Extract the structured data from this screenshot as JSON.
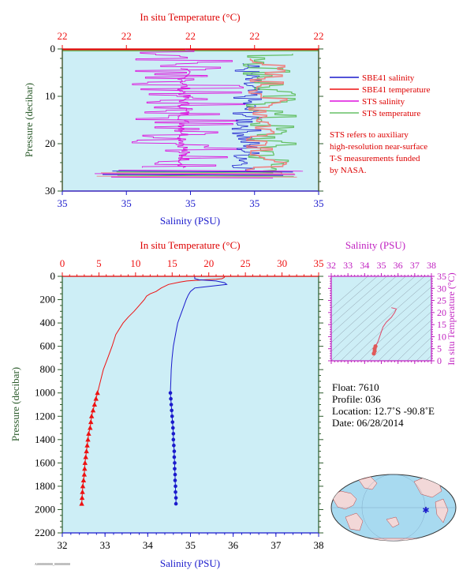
{
  "colors": {
    "plot_bg": "#cdeef6",
    "salinity": "#1a1acc",
    "temperature": "#ee1111",
    "sts_salinity": "#dd11dd",
    "sts_temperature": "#66c066",
    "ts_axis": "#c020c0",
    "pressure_axis": "#2a5a2a"
  },
  "chart_data": [
    {
      "id": "near-surface",
      "type": "line",
      "top_axis": {
        "label": "In situ Temperature (°C)",
        "ticks": [
          "22",
          "22",
          "22",
          "22",
          "22"
        ]
      },
      "bottom_axis": {
        "label": "Salinity (PSU)",
        "ticks": [
          "35",
          "35",
          "35",
          "35",
          "35"
        ]
      },
      "y_axis": {
        "label": "Pressure (decibar)",
        "ticks": [
          "0",
          "10",
          "20",
          "30"
        ],
        "ylim": [
          30,
          0
        ]
      },
      "legend": {
        "position": "right",
        "entries": [
          {
            "name": "SBE41 salinity",
            "color": "#1a1acc"
          },
          {
            "name": "SBE41 temperature",
            "color": "#ee1111"
          },
          {
            "name": "STS salinity",
            "color": "#dd11dd"
          },
          {
            "name": "STS temperature",
            "color": "#66c066"
          }
        ]
      },
      "note": [
        "STS refers to auxiliary",
        "high-resolution near-surface",
        "T-S measurements funded",
        "by NASA."
      ],
      "series": [
        {
          "name": "STS salinity",
          "x_range": [
            0.1,
            0.75
          ],
          "pressure_range": [
            0,
            27
          ]
        },
        {
          "name": "SBE41 salinity",
          "x_range": [
            0.66,
            0.78
          ],
          "pressure_range": [
            3,
            27
          ]
        },
        {
          "name": "STS temperature",
          "x_range": [
            0.6,
            0.94
          ],
          "pressure_range": [
            0,
            27
          ]
        },
        {
          "name": "SBE41 temperature",
          "x_range": [
            0.7,
            0.88
          ],
          "pressure_range": [
            2,
            27
          ]
        }
      ]
    },
    {
      "id": "full-profile",
      "type": "line",
      "top_axis": {
        "label": "In situ Temperature (°C)",
        "ticks": [
          "0",
          "5",
          "10",
          "15",
          "20",
          "25",
          "30",
          "35"
        ],
        "xlim": [
          0,
          35
        ]
      },
      "bottom_axis": {
        "label": "Salinity (PSU)",
        "ticks": [
          "32",
          "33",
          "34",
          "35",
          "36",
          "37",
          "38"
        ],
        "xlim": [
          32,
          38
        ]
      },
      "y_axis": {
        "label": "Pressure (decibar)",
        "ticks": [
          "0",
          "200",
          "400",
          "600",
          "800",
          "1000",
          "1200",
          "1400",
          "1600",
          "1800",
          "2000",
          "2200"
        ],
        "ylim": [
          2200,
          0
        ]
      },
      "series": [
        {
          "name": "Temperature",
          "axis": "top",
          "points": [
            [
              22.2,
              0
            ],
            [
              22.1,
              10
            ],
            [
              21.8,
              20
            ],
            [
              21.0,
              25
            ],
            [
              19.5,
              30
            ],
            [
              18.0,
              35
            ],
            [
              17.0,
              40
            ],
            [
              16.0,
              50
            ],
            [
              14.5,
              70
            ],
            [
              13.5,
              100
            ],
            [
              12.8,
              130
            ],
            [
              12.0,
              150
            ],
            [
              11.5,
              170
            ],
            [
              11.2,
              200
            ],
            [
              10.5,
              250
            ],
            [
              9.8,
              300
            ],
            [
              9.0,
              350
            ],
            [
              8.3,
              400
            ],
            [
              7.8,
              450
            ],
            [
              7.3,
              500
            ],
            [
              6.8,
              600
            ],
            [
              6.2,
              700
            ],
            [
              5.6,
              800
            ],
            [
              5.2,
              900
            ],
            [
              4.8,
              1000
            ],
            [
              4.6,
              1050
            ],
            [
              4.4,
              1100
            ],
            [
              4.2,
              1150
            ],
            [
              4.0,
              1200
            ],
            [
              3.9,
              1250
            ],
            [
              3.8,
              1300
            ],
            [
              3.6,
              1350
            ],
            [
              3.5,
              1400
            ],
            [
              3.4,
              1450
            ],
            [
              3.3,
              1500
            ],
            [
              3.2,
              1550
            ],
            [
              3.1,
              1600
            ],
            [
              3.05,
              1650
            ],
            [
              3.0,
              1700
            ],
            [
              2.9,
              1750
            ],
            [
              2.8,
              1800
            ],
            [
              2.75,
              1850
            ],
            [
              2.7,
              1900
            ],
            [
              2.65,
              1950
            ]
          ],
          "markers_from_pressure": 1000
        },
        {
          "name": "Salinity",
          "axis": "bottom",
          "points": [
            [
              35.1,
              0
            ],
            [
              35.1,
              20
            ],
            [
              35.2,
              30
            ],
            [
              35.6,
              40
            ],
            [
              35.8,
              55
            ],
            [
              35.85,
              70
            ],
            [
              35.1,
              100
            ],
            [
              35.0,
              130
            ],
            [
              34.95,
              160
            ],
            [
              34.9,
              200
            ],
            [
              34.85,
              250
            ],
            [
              34.8,
              300
            ],
            [
              34.75,
              350
            ],
            [
              34.7,
              400
            ],
            [
              34.65,
              500
            ],
            [
              34.6,
              600
            ],
            [
              34.57,
              700
            ],
            [
              34.55,
              800
            ],
            [
              34.54,
              900
            ],
            [
              34.53,
              1000
            ],
            [
              34.54,
              1050
            ],
            [
              34.55,
              1100
            ],
            [
              34.56,
              1150
            ],
            [
              34.57,
              1200
            ],
            [
              34.58,
              1250
            ],
            [
              34.59,
              1300
            ],
            [
              34.6,
              1350
            ],
            [
              34.6,
              1400
            ],
            [
              34.61,
              1450
            ],
            [
              34.62,
              1500
            ],
            [
              34.62,
              1550
            ],
            [
              34.63,
              1600
            ],
            [
              34.63,
              1650
            ],
            [
              34.64,
              1700
            ],
            [
              34.64,
              1750
            ],
            [
              34.65,
              1800
            ],
            [
              34.65,
              1850
            ],
            [
              34.66,
              1900
            ],
            [
              34.66,
              1950
            ]
          ],
          "markers_from_pressure": 1000
        }
      ]
    },
    {
      "id": "ts-diagram",
      "type": "scatter",
      "top_axis": {
        "label": "Salinity (PSU)",
        "ticks": [
          "32",
          "33",
          "34",
          "35",
          "36",
          "37",
          "38"
        ],
        "xlim": [
          32,
          38
        ]
      },
      "right_axis": {
        "label": "In situ Temperature (°C)",
        "ticks": [
          "0",
          "5",
          "10",
          "15",
          "20",
          "25",
          "30",
          "35"
        ],
        "ylim": [
          0,
          35
        ]
      },
      "series": [
        {
          "name": "T-S",
          "points": [
            [
              34.55,
              3.0
            ],
            [
              34.6,
              4.0
            ],
            [
              34.6,
              5.0
            ],
            [
              34.65,
              6.0
            ],
            [
              34.8,
              8.0
            ],
            [
              34.9,
              10.0
            ],
            [
              35.0,
              12.0
            ],
            [
              35.1,
              14.0
            ],
            [
              35.3,
              16.0
            ],
            [
              35.6,
              18.0
            ],
            [
              35.8,
              20.0
            ],
            [
              35.9,
              21.5
            ],
            [
              35.6,
              22.0
            ]
          ]
        }
      ]
    }
  ],
  "info": {
    "float": "Float: 7610",
    "profile": "Profile: 036",
    "location": "Location: 12.7˚S -90.8˚E",
    "date": "Date: 06/28/2014"
  },
  "map": {
    "marker": "float-location"
  },
  "footer": {
    "stamp": "A0000000000_0000000000"
  }
}
